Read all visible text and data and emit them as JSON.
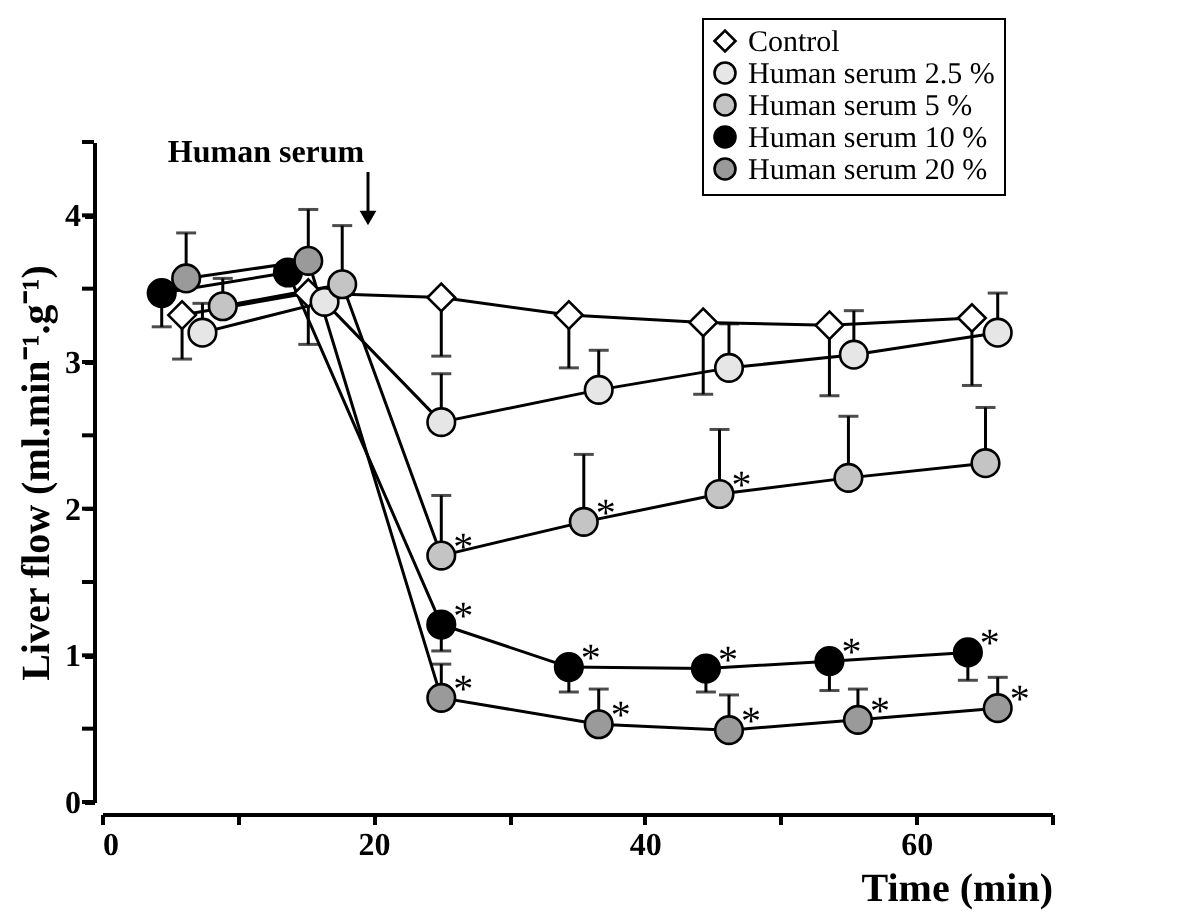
{
  "chart_data": {
    "type": "line",
    "xlabel": "Time (min)",
    "ylabel": "Liver flow (ml.min⁻¹.g⁻¹)",
    "xlim": [
      0,
      70
    ],
    "xticks": [
      0,
      {
        "value": 10,
        "label": null
      },
      20,
      {
        "value": 30,
        "label": null
      },
      40,
      {
        "value": 50,
        "label": null
      },
      60,
      {
        "value": 70,
        "label": null
      }
    ],
    "ylim": [
      0,
      4.5
    ],
    "yticks": [
      0,
      {
        "value": 0.5,
        "label": null
      },
      1,
      {
        "value": 1.5,
        "label": null
      },
      2,
      {
        "value": 2.5,
        "label": null
      },
      3,
      {
        "value": 3.5,
        "label": null
      },
      4,
      {
        "value": 4.5,
        "label": null
      }
    ],
    "grid": false,
    "legend": "top right",
    "line_style": "solid",
    "series": [
      {
        "name": "Control",
        "color": "#ffffff",
        "marker": "diamond",
        "x": [
          5.9,
          15.2,
          25,
          34.4,
          44.3,
          53.6,
          64.1
        ],
        "values": [
          3.32,
          3.47,
          3.44,
          3.32,
          3.27,
          3.25,
          3.3
        ],
        "errors": [
          [
            3.02,
            3.32
          ],
          [
            3.12,
            3.47
          ],
          [
            3.04,
            3.44
          ],
          [
            2.96,
            3.32
          ],
          [
            2.78,
            3.27
          ],
          [
            2.77,
            3.25
          ],
          [
            2.84,
            3.3
          ]
        ]
      },
      {
        "name": "Human serum 2.5 %",
        "color": "#e6e6e6",
        "marker": "circle",
        "x": [
          7.4,
          16.4,
          25,
          36.6,
          46.2,
          55.4,
          66
        ],
        "values": [
          3.2,
          3.41,
          2.59,
          2.81,
          2.96,
          3.05,
          3.2
        ],
        "errors": [
          [
            3.2,
            3.4
          ],
          null,
          [
            2.59,
            2.92
          ],
          [
            2.81,
            3.08
          ],
          [
            2.96,
            3.26
          ],
          [
            3.05,
            3.35
          ],
          [
            3.2,
            3.47
          ]
        ]
      },
      {
        "name": "Human serum 5 %",
        "color": "#c4c4c4",
        "marker": "circle",
        "x": [
          8.9,
          17.7,
          25,
          35.5,
          45.5,
          55,
          65.1
        ],
        "values": [
          3.38,
          3.53,
          1.68,
          1.91,
          2.1,
          2.21,
          2.31
        ],
        "errors": [
          [
            3.38,
            3.57
          ],
          [
            3.53,
            3.93
          ],
          [
            1.68,
            2.09
          ],
          [
            1.91,
            2.37
          ],
          [
            2.1,
            2.54
          ],
          [
            2.21,
            2.63
          ],
          [
            2.31,
            2.69
          ]
        ]
      },
      {
        "name": "Human serum 10 %",
        "color": "#000000",
        "marker": "circle",
        "x": [
          4.4,
          13.7,
          25,
          34.4,
          44.5,
          53.6,
          63.8
        ],
        "values": [
          3.47,
          3.61,
          1.21,
          0.92,
          0.91,
          0.96,
          1.02
        ],
        "errors": [
          [
            3.24,
            3.47
          ],
          null,
          [
            1.03,
            1.21
          ],
          [
            0.75,
            0.92
          ],
          [
            0.75,
            0.91
          ],
          [
            0.76,
            0.96
          ],
          [
            0.83,
            1.02
          ]
        ]
      },
      {
        "name": "Human serum 20 %",
        "color": "#9a9a9a",
        "marker": "circle",
        "x": [
          6.2,
          15.2,
          25,
          36.6,
          46.2,
          55.7,
          66
        ],
        "values": [
          3.57,
          3.69,
          0.71,
          0.53,
          0.49,
          0.56,
          0.64
        ],
        "errors": [
          [
            3.57,
            3.88
          ],
          [
            3.69,
            4.04
          ],
          [
            0.71,
            0.94
          ],
          [
            0.53,
            0.77
          ],
          [
            0.49,
            0.73
          ],
          [
            0.56,
            0.77
          ],
          [
            0.64,
            0.85
          ]
        ]
      }
    ],
    "annotations": [
      "Human serum",
      {
        "text": "*",
        "x": 25,
        "y": 1.68
      },
      {
        "text": "*",
        "x": 35.5,
        "y": 1.91
      },
      {
        "text": "*",
        "x": 45.5,
        "y": 2.1
      },
      {
        "text": "*",
        "x": 25,
        "y": 1.21
      },
      {
        "text": "*",
        "x": 34.4,
        "y": 0.92
      },
      {
        "text": "*",
        "x": 44.5,
        "y": 0.91
      },
      {
        "text": "*",
        "x": 53.6,
        "y": 0.96
      },
      {
        "text": "*",
        "x": 63.8,
        "y": 1.02
      },
      {
        "text": "*",
        "x": 25,
        "y": 0.71
      },
      {
        "text": "*",
        "x": 36.6,
        "y": 0.53
      },
      {
        "text": "*",
        "x": 46.2,
        "y": 0.49
      },
      {
        "text": "*",
        "x": 55.7,
        "y": 0.56
      },
      {
        "text": "*",
        "x": 66,
        "y": 0.64
      }
    ]
  }
}
